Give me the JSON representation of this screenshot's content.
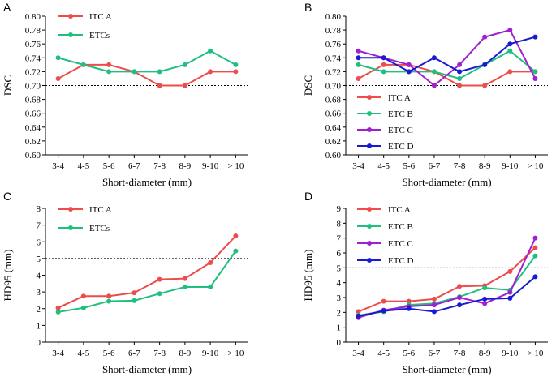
{
  "chart_data": [
    {
      "panel": "A",
      "type": "line",
      "categories": [
        "3-4",
        "4-5",
        "5-6",
        "6-7",
        "7-8",
        "8-9",
        "9-10",
        "> 10"
      ],
      "xlabel": "Short-diameter (mm)",
      "ylabel": "DSC",
      "ylim": [
        0.6,
        0.8
      ],
      "yticks": [
        "0.60",
        "0.62",
        "0.64",
        "0.66",
        "0.68",
        "0.70",
        "0.72",
        "0.74",
        "0.76",
        "0.78",
        "0.80"
      ],
      "ref": 0.7,
      "series": [
        {
          "name": "ITC A",
          "color": "#ee4b4b",
          "values": [
            0.71,
            0.73,
            0.73,
            0.72,
            0.7,
            0.7,
            0.72,
            0.72
          ]
        },
        {
          "name": "ETCs",
          "color": "#1fbf7f",
          "values": [
            0.74,
            0.73,
            0.72,
            0.72,
            0.72,
            0.73,
            0.75,
            0.73
          ]
        }
      ]
    },
    {
      "panel": "B",
      "type": "line",
      "categories": [
        "3-4",
        "4-5",
        "5-6",
        "6-7",
        "7-8",
        "8-9",
        "9-10",
        "> 10"
      ],
      "xlabel": "Short-diameter (mm)",
      "ylabel": "DSC",
      "ylim": [
        0.6,
        0.8
      ],
      "yticks": [
        "0.60",
        "0.62",
        "0.64",
        "0.66",
        "0.68",
        "0.70",
        "0.72",
        "0.74",
        "0.76",
        "0.78",
        "0.80"
      ],
      "ref": 0.7,
      "series": [
        {
          "name": "ITC A",
          "color": "#ee4b4b",
          "values": [
            0.71,
            0.73,
            0.73,
            0.72,
            0.7,
            0.7,
            0.72,
            0.72
          ]
        },
        {
          "name": "ETC B",
          "color": "#1fbf7f",
          "values": [
            0.73,
            0.72,
            0.72,
            0.72,
            0.71,
            0.73,
            0.75,
            0.72
          ]
        },
        {
          "name": "ETC C",
          "color": "#a020d0",
          "values": [
            0.75,
            0.74,
            0.73,
            0.7,
            0.73,
            0.77,
            0.78,
            0.71
          ]
        },
        {
          "name": "ETC D",
          "color": "#1a1ad0",
          "values": [
            0.74,
            0.74,
            0.72,
            0.74,
            0.72,
            0.73,
            0.76,
            0.77
          ]
        }
      ]
    },
    {
      "panel": "C",
      "type": "line",
      "categories": [
        "3-4",
        "4-5",
        "5-6",
        "6-7",
        "7-8",
        "8-9",
        "9-10",
        "> 10"
      ],
      "xlabel": "Short-diameter (mm)",
      "ylabel": "HD95 (mm)",
      "ylim": [
        0,
        8
      ],
      "yticks": [
        "0",
        "1",
        "2",
        "3",
        "4",
        "5",
        "6",
        "7",
        "8"
      ],
      "ref": 5,
      "series": [
        {
          "name": "ITC A",
          "color": "#ee4b4b",
          "values": [
            2.05,
            2.75,
            2.75,
            2.95,
            3.75,
            3.8,
            4.75,
            6.35
          ]
        },
        {
          "name": "ETCs",
          "color": "#1fbf7f",
          "values": [
            1.8,
            2.05,
            2.45,
            2.48,
            2.9,
            3.3,
            3.3,
            5.45
          ]
        }
      ]
    },
    {
      "panel": "D",
      "type": "line",
      "categories": [
        "3-4",
        "4-5",
        "5-6",
        "6-7",
        "7-8",
        "8-9",
        "9-10",
        "> 10"
      ],
      "xlabel": "Short-diameter (mm)",
      "ylabel": "HD95 (mm)",
      "ylim": [
        0,
        9
      ],
      "yticks": [
        "0",
        "1",
        "2",
        "3",
        "4",
        "5",
        "6",
        "7",
        "8",
        "9"
      ],
      "ref": 5,
      "series": [
        {
          "name": "ITC A",
          "color": "#ee4b4b",
          "values": [
            2.05,
            2.75,
            2.75,
            2.9,
            3.75,
            3.8,
            4.75,
            6.35
          ]
        },
        {
          "name": "ETC B",
          "color": "#1fbf7f",
          "values": [
            1.8,
            2.05,
            2.5,
            2.6,
            3.05,
            3.65,
            3.5,
            5.8
          ]
        },
        {
          "name": "ETC C",
          "color": "#a020d0",
          "values": [
            1.65,
            2.15,
            2.4,
            2.5,
            3.0,
            2.6,
            3.35,
            7.0
          ]
        },
        {
          "name": "ETC D",
          "color": "#1a1ad0",
          "values": [
            1.75,
            2.1,
            2.25,
            2.05,
            2.5,
            2.9,
            2.95,
            4.4
          ]
        }
      ]
    }
  ]
}
